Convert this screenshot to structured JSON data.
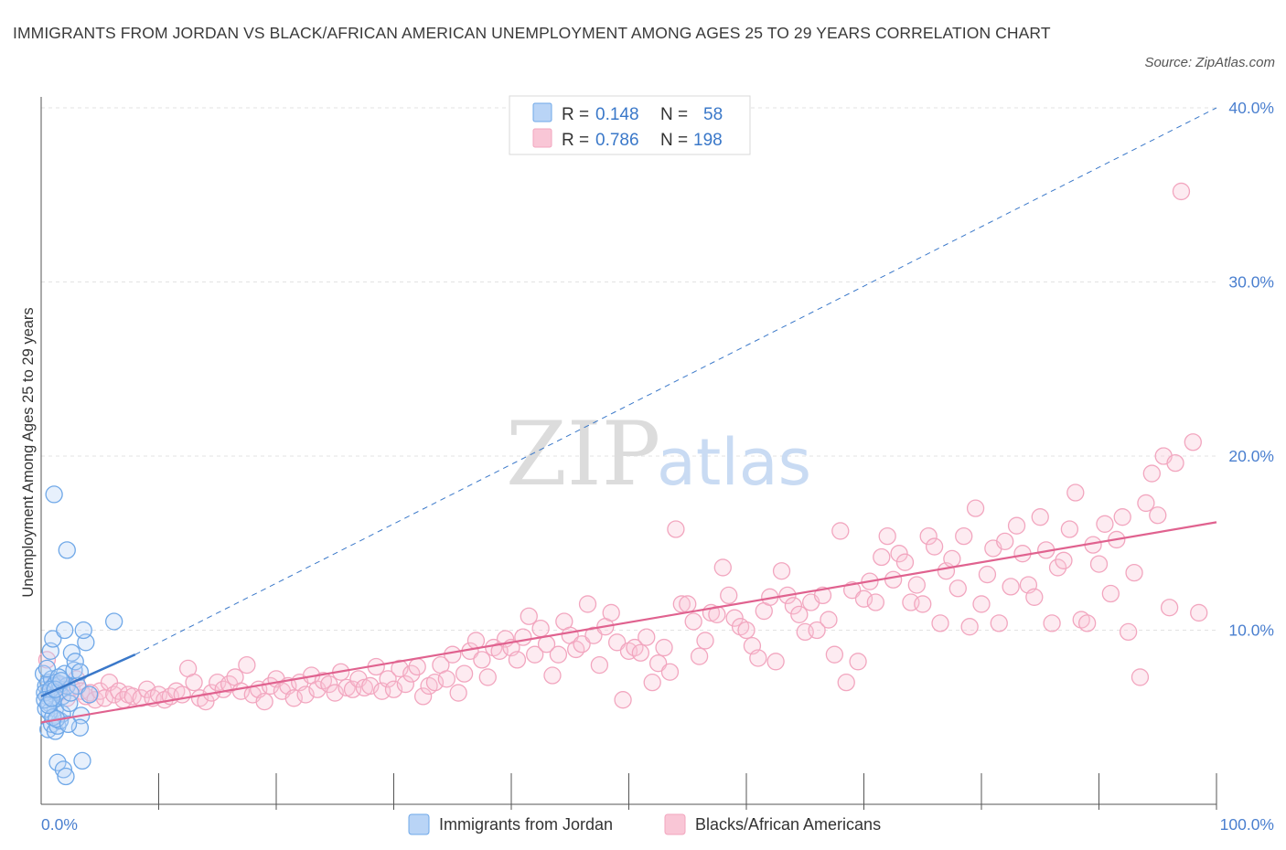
{
  "title": "IMMIGRANTS FROM JORDAN VS BLACK/AFRICAN AMERICAN UNEMPLOYMENT AMONG AGES 25 TO 29 YEARS CORRELATION CHART",
  "source": "Source: ZipAtlas.com",
  "watermark": {
    "part1": "ZIP",
    "part2": "atlas"
  },
  "colors": {
    "blue": "#6fa8e8",
    "blue_line": "#3a78c9",
    "pink": "#f2a6bf",
    "pink_line": "#e0628f",
    "axis_label": "#4a7fcf"
  },
  "chart_data": {
    "type": "scatter",
    "xlabel": "",
    "ylabel": "Unemployment Among Ages 25 to 29 years",
    "xlim": [
      0,
      100
    ],
    "ylim": [
      0,
      40
    ],
    "x_ticks": [
      "0.0%",
      "100.0%"
    ],
    "y_ticks": [
      "10.0%",
      "20.0%",
      "30.0%",
      "40.0%"
    ],
    "grid": true,
    "legend_position": "bottom",
    "stats": [
      {
        "r_label": "R =",
        "r_value": "0.148",
        "n_label": "N =",
        "n_value": "58"
      },
      {
        "r_label": "R =",
        "r_value": "0.786",
        "n_label": "N =",
        "n_value": "198"
      }
    ],
    "series": [
      {
        "name": "Immigrants from Jordan",
        "color": "#6fa8e8",
        "trend": {
          "x0": 0,
          "y0": 6.2,
          "x1": 8,
          "y1": 8.6,
          "dashed_to_x": 100,
          "dashed_to_y": 40
        },
        "points": [
          [
            0.2,
            7.5
          ],
          [
            0.4,
            6.8
          ],
          [
            0.5,
            6.2
          ],
          [
            0.6,
            7.0
          ],
          [
            0.7,
            5.8
          ],
          [
            0.8,
            6.5
          ],
          [
            0.9,
            7.2
          ],
          [
            1.0,
            6.0
          ],
          [
            1.1,
            6.8
          ],
          [
            1.2,
            5.5
          ],
          [
            0.3,
            6.4
          ],
          [
            0.5,
            7.8
          ],
          [
            0.8,
            8.8
          ],
          [
            1.0,
            9.5
          ],
          [
            1.3,
            7.0
          ],
          [
            1.5,
            6.5
          ],
          [
            1.6,
            6.9
          ],
          [
            1.8,
            6.2
          ],
          [
            2.0,
            7.5
          ],
          [
            2.2,
            6.8
          ],
          [
            0.6,
            4.3
          ],
          [
            0.9,
            4.6
          ],
          [
            1.2,
            4.2
          ],
          [
            1.4,
            4.5
          ],
          [
            1.6,
            4.8
          ],
          [
            1.8,
            5.2
          ],
          [
            2.4,
            5.8
          ],
          [
            2.8,
            7.7
          ],
          [
            3.1,
            6.8
          ],
          [
            3.4,
            5.1
          ],
          [
            0.4,
            5.5
          ],
          [
            0.7,
            5.3
          ],
          [
            1.0,
            5.0
          ],
          [
            1.3,
            4.9
          ],
          [
            2.6,
            8.7
          ],
          [
            2.9,
            8.2
          ],
          [
            3.3,
            7.6
          ],
          [
            3.8,
            9.3
          ],
          [
            4.1,
            6.3
          ],
          [
            6.2,
            10.5
          ],
          [
            1.1,
            17.8
          ],
          [
            2.2,
            14.6
          ],
          [
            1.4,
            2.4
          ],
          [
            1.9,
            2.0
          ],
          [
            2.1,
            1.6
          ],
          [
            3.5,
            2.5
          ],
          [
            2.0,
            10.0
          ],
          [
            3.6,
            10.0
          ],
          [
            0.8,
            6.6
          ],
          [
            1.5,
            7.3
          ],
          [
            0.3,
            6.0
          ],
          [
            0.6,
            5.7
          ],
          [
            0.9,
            6.1
          ],
          [
            1.2,
            6.6
          ],
          [
            1.7,
            7.1
          ],
          [
            2.5,
            6.4
          ],
          [
            3.3,
            4.4
          ],
          [
            2.3,
            4.6
          ]
        ]
      },
      {
        "name": "Blacks/African Americans",
        "color": "#f2a6bf",
        "trend": {
          "x0": 0,
          "y0": 4.7,
          "x1": 100,
          "y1": 16.2
        },
        "points": [
          [
            0.5,
            8.3
          ],
          [
            0.8,
            6.6
          ],
          [
            1.2,
            7.0
          ],
          [
            1.5,
            6.4
          ],
          [
            1.8,
            6.8
          ],
          [
            2.2,
            6.1
          ],
          [
            2.6,
            6.7
          ],
          [
            3.0,
            7.2
          ],
          [
            3.4,
            6.5
          ],
          [
            3.8,
            6.2
          ],
          [
            4.2,
            6.4
          ],
          [
            4.6,
            6.0
          ],
          [
            5.0,
            6.5
          ],
          [
            5.4,
            6.1
          ],
          [
            5.8,
            7.0
          ],
          [
            6.2,
            6.3
          ],
          [
            6.6,
            6.5
          ],
          [
            7.0,
            6.0
          ],
          [
            7.4,
            6.3
          ],
          [
            7.8,
            6.2
          ],
          [
            8.5,
            6.1
          ],
          [
            9.0,
            6.6
          ],
          [
            9.5,
            6.1
          ],
          [
            10.0,
            6.3
          ],
          [
            10.5,
            6.0
          ],
          [
            11.0,
            6.2
          ],
          [
            11.5,
            6.5
          ],
          [
            12.0,
            6.3
          ],
          [
            12.5,
            7.8
          ],
          [
            13.0,
            7.0
          ],
          [
            13.5,
            6.1
          ],
          [
            14.0,
            5.9
          ],
          [
            14.5,
            6.4
          ],
          [
            15.0,
            7.0
          ],
          [
            15.5,
            6.6
          ],
          [
            16.0,
            6.9
          ],
          [
            16.5,
            7.3
          ],
          [
            17.0,
            6.5
          ],
          [
            17.5,
            8.0
          ],
          [
            18.0,
            6.3
          ],
          [
            18.5,
            6.6
          ],
          [
            19.0,
            5.9
          ],
          [
            19.5,
            6.8
          ],
          [
            20.0,
            7.2
          ],
          [
            20.5,
            6.5
          ],
          [
            21.0,
            6.8
          ],
          [
            21.5,
            6.1
          ],
          [
            22.0,
            7.0
          ],
          [
            22.5,
            6.3
          ],
          [
            23.0,
            7.4
          ],
          [
            23.5,
            6.6
          ],
          [
            24.0,
            7.1
          ],
          [
            24.5,
            6.9
          ],
          [
            25.0,
            6.4
          ],
          [
            25.5,
            7.6
          ],
          [
            26.0,
            6.7
          ],
          [
            26.5,
            6.6
          ],
          [
            27.0,
            7.2
          ],
          [
            27.5,
            6.7
          ],
          [
            28.0,
            6.8
          ],
          [
            28.5,
            7.9
          ],
          [
            29.0,
            6.5
          ],
          [
            29.5,
            7.2
          ],
          [
            30.0,
            6.6
          ],
          [
            30.5,
            7.8
          ],
          [
            31.0,
            6.9
          ],
          [
            31.5,
            7.5
          ],
          [
            32.0,
            7.9
          ],
          [
            32.5,
            6.2
          ],
          [
            33.0,
            6.8
          ],
          [
            33.5,
            7.0
          ],
          [
            34.0,
            8.0
          ],
          [
            34.5,
            7.2
          ],
          [
            35.0,
            8.6
          ],
          [
            35.5,
            6.4
          ],
          [
            36.0,
            7.5
          ],
          [
            36.5,
            8.8
          ],
          [
            37.0,
            9.4
          ],
          [
            37.5,
            8.3
          ],
          [
            38.0,
            7.3
          ],
          [
            38.5,
            9.0
          ],
          [
            39.0,
            8.8
          ],
          [
            39.5,
            9.5
          ],
          [
            40.0,
            9.0
          ],
          [
            40.5,
            8.3
          ],
          [
            41.0,
            9.6
          ],
          [
            41.5,
            10.8
          ],
          [
            42.0,
            8.6
          ],
          [
            42.5,
            10.1
          ],
          [
            43.0,
            9.2
          ],
          [
            43.5,
            7.4
          ],
          [
            44.0,
            8.6
          ],
          [
            44.5,
            10.5
          ],
          [
            45.0,
            9.7
          ],
          [
            45.5,
            8.9
          ],
          [
            46.0,
            9.2
          ],
          [
            46.5,
            11.5
          ],
          [
            47.0,
            9.7
          ],
          [
            47.5,
            8.0
          ],
          [
            48.0,
            10.2
          ],
          [
            48.5,
            11.0
          ],
          [
            49.0,
            9.3
          ],
          [
            49.5,
            6.0
          ],
          [
            50.0,
            8.8
          ],
          [
            50.5,
            9.0
          ],
          [
            51.0,
            8.7
          ],
          [
            51.5,
            9.6
          ],
          [
            52.0,
            7.0
          ],
          [
            52.5,
            8.1
          ],
          [
            53.0,
            9.0
          ],
          [
            53.5,
            7.6
          ],
          [
            54.0,
            15.8
          ],
          [
            54.5,
            11.5
          ],
          [
            55.0,
            11.5
          ],
          [
            55.5,
            10.5
          ],
          [
            56.0,
            8.5
          ],
          [
            56.5,
            9.4
          ],
          [
            57.0,
            11.0
          ],
          [
            57.5,
            10.9
          ],
          [
            58.0,
            13.6
          ],
          [
            58.5,
            12.0
          ],
          [
            59.0,
            10.7
          ],
          [
            59.5,
            10.2
          ],
          [
            60.0,
            10.0
          ],
          [
            60.5,
            9.1
          ],
          [
            61.0,
            8.4
          ],
          [
            61.5,
            11.1
          ],
          [
            62.0,
            11.9
          ],
          [
            62.5,
            8.2
          ],
          [
            63.0,
            13.4
          ],
          [
            63.5,
            12.0
          ],
          [
            64.0,
            11.4
          ],
          [
            64.5,
            10.9
          ],
          [
            65.0,
            9.9
          ],
          [
            65.5,
            11.6
          ],
          [
            66.0,
            10.0
          ],
          [
            66.5,
            12.0
          ],
          [
            67.0,
            10.6
          ],
          [
            67.5,
            8.6
          ],
          [
            68.0,
            15.7
          ],
          [
            68.5,
            7.0
          ],
          [
            69.0,
            12.3
          ],
          [
            69.5,
            8.2
          ],
          [
            70.0,
            11.8
          ],
          [
            70.5,
            12.8
          ],
          [
            71.0,
            11.6
          ],
          [
            71.5,
            14.2
          ],
          [
            72.0,
            15.4
          ],
          [
            72.5,
            12.9
          ],
          [
            73.0,
            14.4
          ],
          [
            73.5,
            13.9
          ],
          [
            74.0,
            11.6
          ],
          [
            74.5,
            12.6
          ],
          [
            75.0,
            11.5
          ],
          [
            75.5,
            15.4
          ],
          [
            76.0,
            14.8
          ],
          [
            76.5,
            10.4
          ],
          [
            77.0,
            13.4
          ],
          [
            77.5,
            14.1
          ],
          [
            78.0,
            12.4
          ],
          [
            78.5,
            15.4
          ],
          [
            79.0,
            10.2
          ],
          [
            79.5,
            17.0
          ],
          [
            80.0,
            11.5
          ],
          [
            80.5,
            13.2
          ],
          [
            81.0,
            14.7
          ],
          [
            81.5,
            10.4
          ],
          [
            82.0,
            15.1
          ],
          [
            82.5,
            12.5
          ],
          [
            83.0,
            16.0
          ],
          [
            83.5,
            14.4
          ],
          [
            84.0,
            12.6
          ],
          [
            84.5,
            11.9
          ],
          [
            85.0,
            16.5
          ],
          [
            85.5,
            14.6
          ],
          [
            86.0,
            10.4
          ],
          [
            86.5,
            13.6
          ],
          [
            87.0,
            14.0
          ],
          [
            87.5,
            15.8
          ],
          [
            88.0,
            17.9
          ],
          [
            88.5,
            10.6
          ],
          [
            89.0,
            10.4
          ],
          [
            89.5,
            14.9
          ],
          [
            90.0,
            13.8
          ],
          [
            90.5,
            16.1
          ],
          [
            91.0,
            12.1
          ],
          [
            91.5,
            15.2
          ],
          [
            92.0,
            16.5
          ],
          [
            92.5,
            9.9
          ],
          [
            93.0,
            13.3
          ],
          [
            93.5,
            7.3
          ],
          [
            94.0,
            17.3
          ],
          [
            94.5,
            19.0
          ],
          [
            95.0,
            16.6
          ],
          [
            95.5,
            20.0
          ],
          [
            96.0,
            11.3
          ],
          [
            96.5,
            19.6
          ],
          [
            97.0,
            35.2
          ],
          [
            98.0,
            20.8
          ],
          [
            98.5,
            11.0
          ]
        ]
      }
    ]
  }
}
